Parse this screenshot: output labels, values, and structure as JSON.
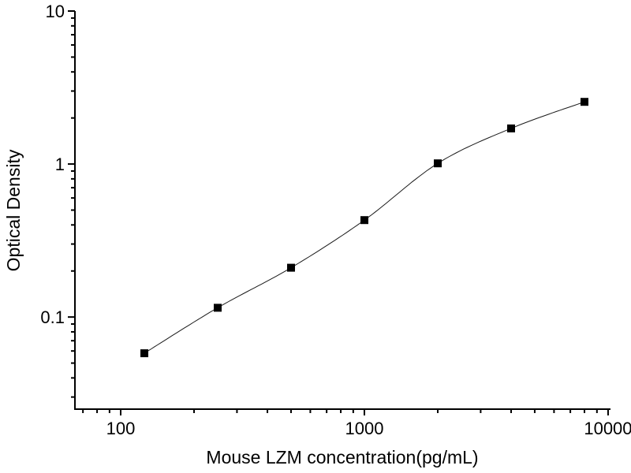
{
  "page": {
    "background": "#ffffff"
  },
  "chart_data": {
    "type": "scatter",
    "title": "",
    "xlabel": "Mouse LZM concentration(pg/mL)",
    "ylabel": "Optical Density",
    "xscale": "log",
    "yscale": "log",
    "xlim": [
      64.9,
      10230
    ],
    "ylim": [
      0.025,
      10
    ],
    "x_major_ticks": [
      100,
      1000,
      10000
    ],
    "x_tick_labels": [
      "100",
      "1000",
      "10000"
    ],
    "y_major_ticks": [
      0.1,
      1,
      10
    ],
    "y_tick_labels": [
      "0.1",
      "1",
      "10"
    ],
    "grid": false,
    "legend": "none",
    "marker": "filled-square",
    "marker_color": "#000000",
    "line_color": "#000000",
    "has_fit_line": true,
    "series": [
      {
        "name": "standard-curve",
        "x": [
          125,
          250,
          500,
          1000,
          2000,
          4000,
          8000
        ],
        "y": [
          0.058,
          0.115,
          0.21,
          0.43,
          1.01,
          1.71,
          2.55
        ]
      }
    ]
  }
}
